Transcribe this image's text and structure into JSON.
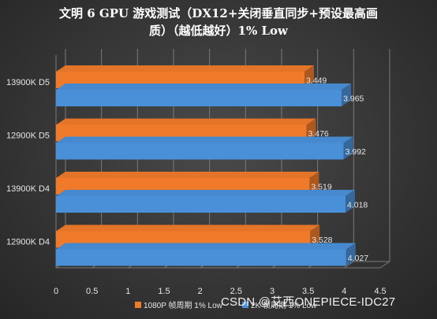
{
  "chart_data": {
    "type": "bar",
    "orientation": "horizontal",
    "title_line1": "文明 6 GPU 游戏测试（DX12+关闭垂直同步+预设最高画",
    "title_line2": "质）（越低越好）1% Low",
    "categories": [
      "13900K D5",
      "12900K D5",
      "13900K D4",
      "12900K D4"
    ],
    "series": [
      {
        "name": "1080P 帧周期 1% Low",
        "color": "#f07a2a",
        "values": [
          3.449,
          3.476,
          3.519,
          3.528
        ]
      },
      {
        "name": "2K 帧周期 1% Low",
        "color": "#4a90d9",
        "values": [
          3.965,
          3.992,
          4.018,
          4.027
        ]
      }
    ],
    "xlim": [
      0,
      4.5
    ],
    "xticks": [
      "0",
      "0.5",
      "1",
      "1.5",
      "2",
      "2.5",
      "3",
      "3.5",
      "4",
      "4.5"
    ],
    "grid": true,
    "legend_position": "bottom",
    "style": "3d"
  },
  "watermark": "CSDN @艾西ONEPIECE-IDC27"
}
